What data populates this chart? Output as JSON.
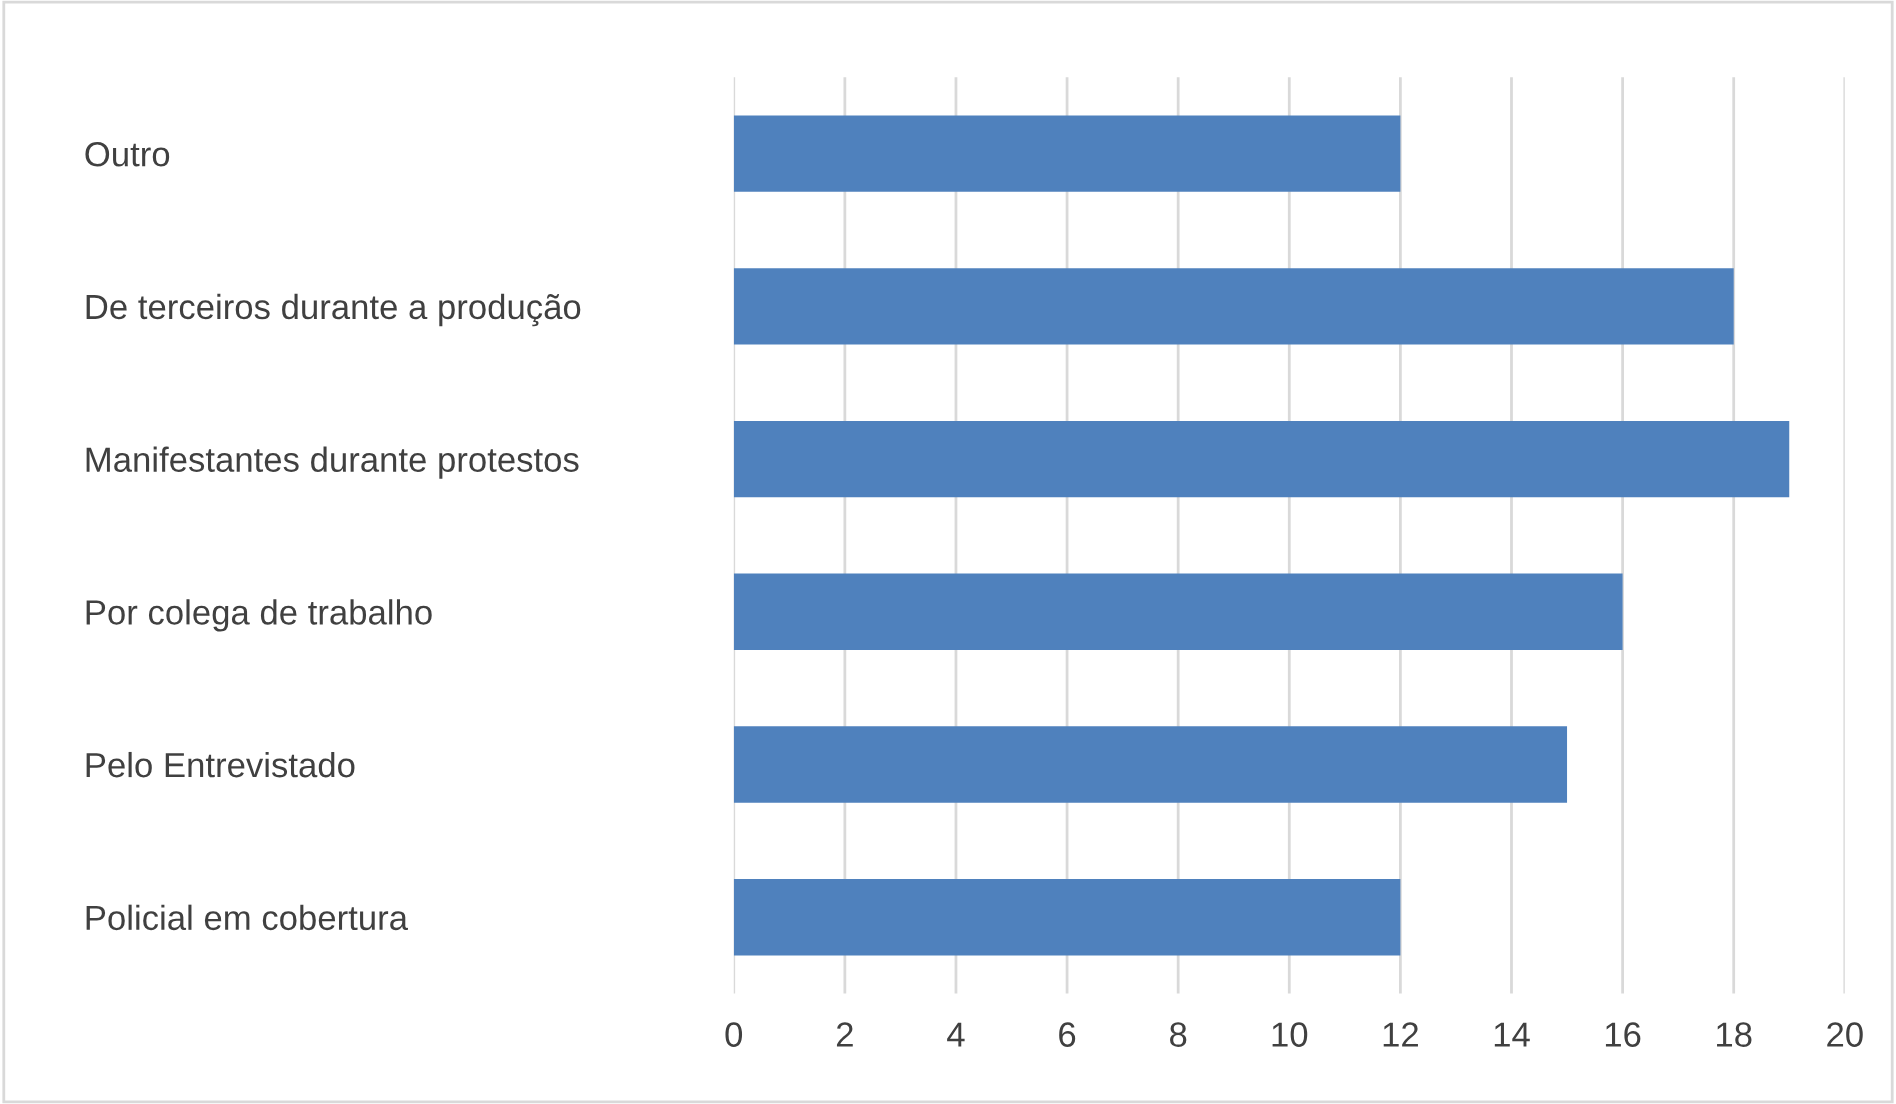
{
  "chart_data": {
    "type": "bar",
    "orientation": "horizontal",
    "categories": [
      "Outro",
      "De terceiros durante a produção",
      "Manifestantes durante protestos",
      "Por colega de trabalho",
      "Pelo Entrevistado",
      "Policial em cobertura"
    ],
    "values": [
      12,
      18,
      19,
      16,
      15,
      12
    ],
    "color": "#4f81bd",
    "xlim": [
      0,
      20
    ],
    "xticks": [
      0,
      2,
      4,
      6,
      8,
      10,
      12,
      14,
      16,
      18,
      20
    ],
    "grid": "x",
    "legend": false
  }
}
